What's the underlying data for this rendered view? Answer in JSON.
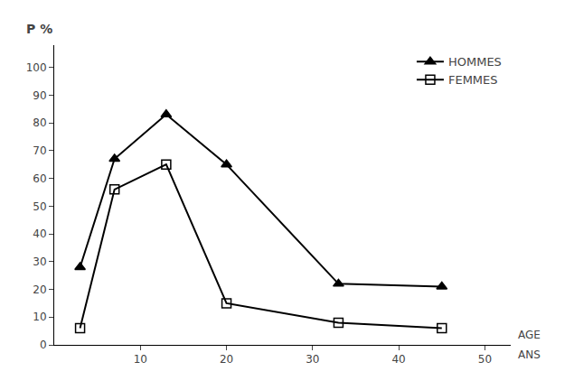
{
  "chart_data": {
    "type": "line",
    "ylabel": "P %",
    "xlabel": "AGE",
    "annotations": [
      "ANS"
    ],
    "x": [
      3,
      7,
      13,
      20,
      33,
      45
    ],
    "series": [
      {
        "name": "HOMMES",
        "color": "#000000",
        "marker": "triangle-up",
        "values": [
          28,
          67,
          83,
          65,
          22,
          21
        ]
      },
      {
        "name": "FEMMES",
        "color": "#000000",
        "marker": "square-open",
        "values": [
          6,
          56,
          65,
          15,
          8,
          6
        ]
      }
    ],
    "xlim": [
      0,
      53
    ],
    "ylim": [
      0,
      108
    ],
    "xticks": [
      10,
      20,
      30,
      40,
      50
    ],
    "yticks": [
      0,
      10,
      20,
      30,
      40,
      50,
      60,
      70,
      80,
      90,
      100
    ],
    "grid": false,
    "legend": "upper right"
  }
}
